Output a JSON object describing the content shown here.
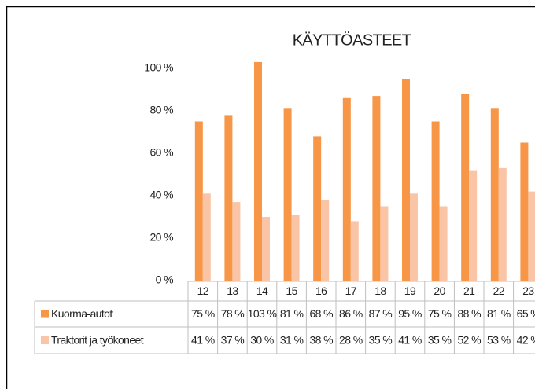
{
  "chart_data": {
    "type": "bar",
    "title": "KÄYTTÖASTEET",
    "categories": [
      "12",
      "13",
      "14",
      "15",
      "16",
      "17",
      "18",
      "19",
      "20",
      "21",
      "22",
      "23"
    ],
    "series": [
      {
        "name": "Kuorma-autot",
        "color": "#f79646",
        "values": [
          75,
          78,
          103,
          81,
          68,
          86,
          87,
          95,
          75,
          88,
          81,
          65
        ],
        "value_labels": [
          "75 %",
          "78 %",
          "103 %",
          "81 %",
          "68 %",
          "86 %",
          "87 %",
          "95 %",
          "75 %",
          "88 %",
          "81 %",
          "65 %"
        ]
      },
      {
        "name": "Traktorit ja työkoneet",
        "color": "#fac4a6",
        "values": [
          41,
          37,
          30,
          31,
          38,
          28,
          35,
          41,
          35,
          52,
          53,
          42
        ],
        "value_labels": [
          "41 %",
          "37 %",
          "30 %",
          "31 %",
          "38 %",
          "28 %",
          "35 %",
          "41 %",
          "35 %",
          "52 %",
          "53 %",
          "42 %"
        ]
      }
    ],
    "ylim": [
      0,
      100
    ],
    "yticks": [
      {
        "value": 0,
        "label": "0 %"
      },
      {
        "value": 20,
        "label": "20 %"
      },
      {
        "value": 40,
        "label": "40 %"
      },
      {
        "value": 60,
        "label": "60 %"
      },
      {
        "value": 80,
        "label": "80 %"
      },
      {
        "value": 100,
        "label": "100 %"
      }
    ],
    "grid": false
  }
}
